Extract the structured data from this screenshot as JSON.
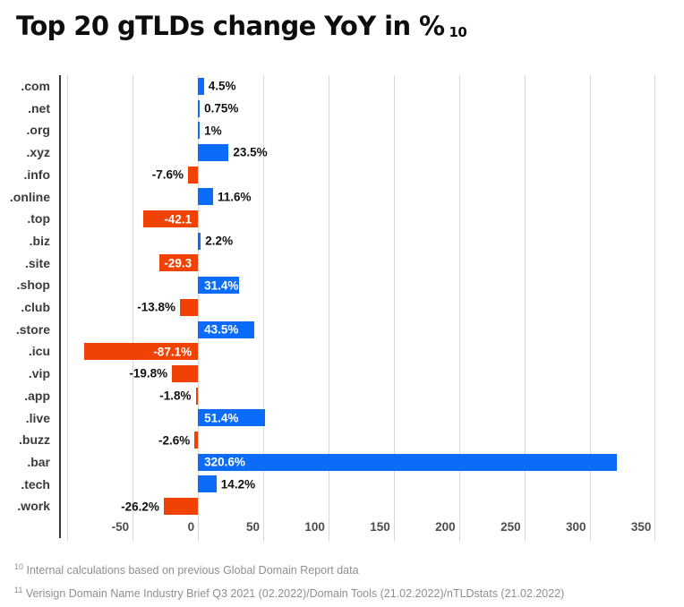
{
  "title": {
    "text": "Top 20 gTLDs change YoY in %",
    "ref": "10"
  },
  "chart_data": {
    "type": "bar",
    "orientation": "horizontal",
    "title": "Top 20 gTLDs change YoY in %",
    "categories": [
      ".com",
      ".net",
      ".org",
      ".xyz",
      ".info",
      ".online",
      ".top",
      ".biz",
      ".site",
      ".shop",
      ".club",
      ".store",
      ".icu",
      ".vip",
      ".app",
      ".live",
      ".buzz",
      ".bar",
      ".tech",
      ".work"
    ],
    "values": [
      4.5,
      0.75,
      1,
      23.5,
      -7.6,
      11.6,
      -42.1,
      2.2,
      -29.3,
      31.4,
      -13.8,
      43.5,
      -87.1,
      -19.8,
      -1.8,
      51.4,
      -2.6,
      320.6,
      14.2,
      -26.2
    ],
    "value_labels": [
      "4.5%",
      "0.75%",
      "1%",
      "23.5%",
      "-7.6%",
      "11.6%",
      "-42.1",
      "2.2%",
      "-29.3",
      "31.4%",
      "-13.8%",
      "43.5%",
      "-87.1%",
      "-19.8%",
      "-1.8%",
      "51.4%",
      "-2.6%",
      "320.6%",
      "14.2%",
      "-26.2%"
    ],
    "label_inside": [
      false,
      false,
      false,
      false,
      false,
      false,
      true,
      false,
      true,
      true,
      false,
      true,
      true,
      false,
      false,
      true,
      false,
      true,
      false,
      false
    ],
    "xticks": [
      -50,
      0,
      50,
      100,
      150,
      200,
      250,
      300,
      350
    ],
    "gridlines": [
      -100,
      -50,
      0,
      50,
      100,
      150,
      200,
      250,
      300,
      350
    ],
    "xlim": [
      -105,
      360
    ],
    "xlabel": "",
    "ylabel": "",
    "legend": "none",
    "grid": "vertical",
    "colors": {
      "positive": "#0b6cfa",
      "negative": "#ef4204"
    }
  },
  "footnotes": [
    {
      "ref": "10",
      "text": "Internal calculations based on previous Global Domain Report data"
    },
    {
      "ref": "11",
      "text": "Verisign Domain Name Industry Brief Q3 2021 (02.2022)/Domain Tools (21.02.2022)/nTLDstats (21.02.2022)"
    }
  ]
}
